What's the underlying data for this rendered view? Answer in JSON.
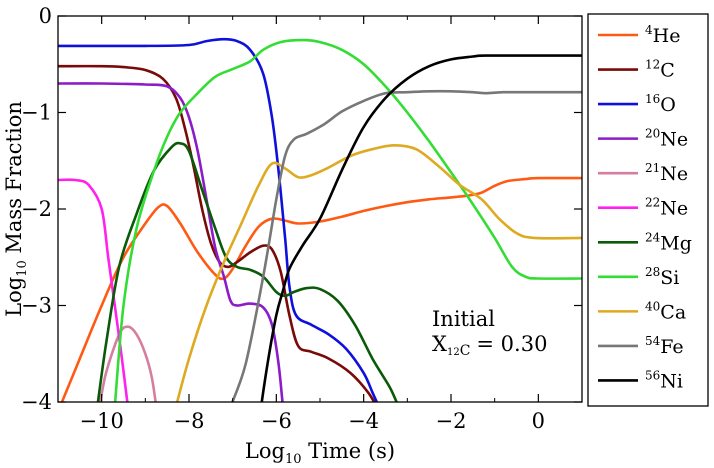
{
  "chart_data": {
    "type": "line",
    "xlabel": "Log10 Time (s)",
    "ylabel": "Log10 Mass Fraction",
    "xlim": [
      -11,
      1
    ],
    "ylim": [
      -4,
      0
    ],
    "xticks": [
      -10,
      -8,
      -6,
      -4,
      -2,
      0
    ],
    "yticks": [
      0,
      -1,
      -2,
      -3,
      -4
    ],
    "annotation": {
      "line1": "Initial",
      "line2_symbol": "X",
      "line2_sub_mass": "12",
      "line2_sub_elem": "C",
      "line2_value": "= 0.30"
    },
    "legend_position": "outside-right",
    "series": [
      {
        "mass": "4",
        "elem": "He",
        "color": "#ff5a14",
        "points": [
          [
            -11,
            -4.1
          ],
          [
            -10.5,
            -3.55
          ],
          [
            -10,
            -3.0
          ],
          [
            -9.5,
            -2.5
          ],
          [
            -9,
            -2.15
          ],
          [
            -8.7,
            -1.98
          ],
          [
            -8.5,
            -1.97
          ],
          [
            -8.2,
            -2.15
          ],
          [
            -7.8,
            -2.45
          ],
          [
            -7.4,
            -2.68
          ],
          [
            -7.2,
            -2.72
          ],
          [
            -7.0,
            -2.62
          ],
          [
            -6.7,
            -2.38
          ],
          [
            -6.4,
            -2.18
          ],
          [
            -6.1,
            -2.1
          ],
          [
            -5.8,
            -2.12
          ],
          [
            -5.5,
            -2.15
          ],
          [
            -5.0,
            -2.13
          ],
          [
            -4.5,
            -2.08
          ],
          [
            -4.0,
            -2.02
          ],
          [
            -3.5,
            -1.97
          ],
          [
            -3.0,
            -1.93
          ],
          [
            -2.5,
            -1.9
          ],
          [
            -2.0,
            -1.88
          ],
          [
            -1.6,
            -1.86
          ],
          [
            -1.3,
            -1.83
          ],
          [
            -1.0,
            -1.76
          ],
          [
            -0.7,
            -1.71
          ],
          [
            -0.3,
            -1.69
          ],
          [
            0,
            -1.68
          ],
          [
            1,
            -1.68
          ]
        ]
      },
      {
        "mass": "12",
        "elem": "C",
        "color": "#7a0a0a",
        "points": [
          [
            -11,
            -0.52
          ],
          [
            -10,
            -0.52
          ],
          [
            -9.5,
            -0.53
          ],
          [
            -9,
            -0.56
          ],
          [
            -8.6,
            -0.65
          ],
          [
            -8.3,
            -0.85
          ],
          [
            -8.1,
            -1.15
          ],
          [
            -7.9,
            -1.55
          ],
          [
            -7.7,
            -2.0
          ],
          [
            -7.5,
            -2.35
          ],
          [
            -7.3,
            -2.55
          ],
          [
            -7.1,
            -2.6
          ],
          [
            -6.9,
            -2.55
          ],
          [
            -6.6,
            -2.45
          ],
          [
            -6.3,
            -2.38
          ],
          [
            -6.1,
            -2.42
          ],
          [
            -5.9,
            -2.65
          ],
          [
            -5.7,
            -3.1
          ],
          [
            -5.5,
            -3.42
          ],
          [
            -5.2,
            -3.48
          ],
          [
            -4.8,
            -3.55
          ],
          [
            -4.3,
            -3.7
          ],
          [
            -3.9,
            -3.9
          ],
          [
            -3.7,
            -4.05
          ]
        ]
      },
      {
        "mass": "16",
        "elem": "O",
        "color": "#1010dd",
        "points": [
          [
            -11,
            -0.31
          ],
          [
            -9,
            -0.31
          ],
          [
            -8,
            -0.3
          ],
          [
            -7.6,
            -0.26
          ],
          [
            -7.2,
            -0.24
          ],
          [
            -6.9,
            -0.26
          ],
          [
            -6.6,
            -0.35
          ],
          [
            -6.3,
            -0.6
          ],
          [
            -6.1,
            -1.05
          ],
          [
            -5.95,
            -1.6
          ],
          [
            -5.8,
            -2.3
          ],
          [
            -5.7,
            -2.8
          ],
          [
            -5.55,
            -3.1
          ],
          [
            -5.2,
            -3.2
          ],
          [
            -4.8,
            -3.3
          ],
          [
            -4.4,
            -3.45
          ],
          [
            -4.0,
            -3.7
          ],
          [
            -3.8,
            -3.9
          ],
          [
            -3.65,
            -4.05
          ]
        ]
      },
      {
        "mass": "20",
        "elem": "Ne",
        "color": "#8c1cc8",
        "points": [
          [
            -11,
            -0.7
          ],
          [
            -10,
            -0.7
          ],
          [
            -9,
            -0.71
          ],
          [
            -8.5,
            -0.73
          ],
          [
            -8.2,
            -0.85
          ],
          [
            -8.0,
            -1.05
          ],
          [
            -7.8,
            -1.4
          ],
          [
            -7.6,
            -1.9
          ],
          [
            -7.4,
            -2.4
          ],
          [
            -7.2,
            -2.7
          ],
          [
            -7.05,
            -2.95
          ],
          [
            -6.9,
            -3.0
          ],
          [
            -6.6,
            -2.98
          ],
          [
            -6.3,
            -3.02
          ],
          [
            -6.1,
            -3.2
          ],
          [
            -5.95,
            -3.6
          ],
          [
            -5.85,
            -4.05
          ]
        ]
      },
      {
        "mass": "21",
        "elem": "Ne",
        "color": "#d67ea0",
        "points": [
          [
            -10.05,
            -4.05
          ],
          [
            -9.9,
            -3.7
          ],
          [
            -9.6,
            -3.3
          ],
          [
            -9.4,
            -3.22
          ],
          [
            -9.2,
            -3.3
          ],
          [
            -9.0,
            -3.5
          ],
          [
            -8.85,
            -3.75
          ],
          [
            -8.75,
            -4.05
          ]
        ]
      },
      {
        "mass": "22",
        "elem": "Ne",
        "color": "#ff22ee",
        "points": [
          [
            -11,
            -1.7
          ],
          [
            -10.6,
            -1.7
          ],
          [
            -10.3,
            -1.75
          ],
          [
            -10.0,
            -2.0
          ],
          [
            -9.85,
            -2.5
          ],
          [
            -9.7,
            -3.0
          ],
          [
            -9.55,
            -3.5
          ],
          [
            -9.4,
            -4.05
          ]
        ]
      },
      {
        "mass": "24",
        "elem": "Mg",
        "color": "#0a5a0a",
        "points": [
          [
            -10.1,
            -4.05
          ],
          [
            -9.9,
            -3.4
          ],
          [
            -9.6,
            -2.6
          ],
          [
            -9.2,
            -2.05
          ],
          [
            -8.8,
            -1.6
          ],
          [
            -8.4,
            -1.36
          ],
          [
            -8.2,
            -1.32
          ],
          [
            -8.0,
            -1.4
          ],
          [
            -7.7,
            -1.8
          ],
          [
            -7.4,
            -2.2
          ],
          [
            -7.15,
            -2.5
          ],
          [
            -6.9,
            -2.6
          ],
          [
            -6.6,
            -2.63
          ],
          [
            -6.3,
            -2.7
          ],
          [
            -6.0,
            -2.86
          ],
          [
            -5.8,
            -2.9
          ],
          [
            -5.6,
            -2.86
          ],
          [
            -5.3,
            -2.82
          ],
          [
            -5.0,
            -2.83
          ],
          [
            -4.6,
            -2.95
          ],
          [
            -4.2,
            -3.2
          ],
          [
            -3.8,
            -3.55
          ],
          [
            -3.4,
            -3.85
          ],
          [
            -3.2,
            -4.05
          ]
        ]
      },
      {
        "mass": "28",
        "elem": "Si",
        "color": "#33dd33",
        "points": [
          [
            -9.7,
            -4.05
          ],
          [
            -9.5,
            -3.0
          ],
          [
            -9.2,
            -2.2
          ],
          [
            -8.8,
            -1.6
          ],
          [
            -8.5,
            -1.25
          ],
          [
            -8.2,
            -1.0
          ],
          [
            -7.8,
            -0.8
          ],
          [
            -7.4,
            -0.63
          ],
          [
            -7.0,
            -0.55
          ],
          [
            -6.6,
            -0.47
          ],
          [
            -6.3,
            -0.35
          ],
          [
            -5.9,
            -0.27
          ],
          [
            -5.4,
            -0.25
          ],
          [
            -5.0,
            -0.27
          ],
          [
            -4.5,
            -0.35
          ],
          [
            -4.0,
            -0.5
          ],
          [
            -3.5,
            -0.73
          ],
          [
            -3.0,
            -1.0
          ],
          [
            -2.5,
            -1.3
          ],
          [
            -2.0,
            -1.62
          ],
          [
            -1.5,
            -1.95
          ],
          [
            -1.0,
            -2.3
          ],
          [
            -0.6,
            -2.6
          ],
          [
            -0.3,
            -2.7
          ],
          [
            0,
            -2.72
          ],
          [
            1,
            -2.72
          ]
        ]
      },
      {
        "mass": "40",
        "elem": "Ca",
        "color": "#ddaa22",
        "points": [
          [
            -8.3,
            -4.05
          ],
          [
            -8.0,
            -3.55
          ],
          [
            -7.6,
            -3.0
          ],
          [
            -7.2,
            -2.55
          ],
          [
            -6.8,
            -2.15
          ],
          [
            -6.4,
            -1.75
          ],
          [
            -6.1,
            -1.53
          ],
          [
            -5.8,
            -1.58
          ],
          [
            -5.5,
            -1.67
          ],
          [
            -5.2,
            -1.65
          ],
          [
            -4.8,
            -1.57
          ],
          [
            -4.3,
            -1.45
          ],
          [
            -3.8,
            -1.38
          ],
          [
            -3.3,
            -1.34
          ],
          [
            -2.8,
            -1.38
          ],
          [
            -2.3,
            -1.55
          ],
          [
            -1.8,
            -1.75
          ],
          [
            -1.3,
            -1.9
          ],
          [
            -0.9,
            -2.1
          ],
          [
            -0.5,
            -2.25
          ],
          [
            -0.1,
            -2.3
          ],
          [
            1,
            -2.3
          ]
        ]
      },
      {
        "mass": "54",
        "elem": "Fe",
        "color": "#777777",
        "points": [
          [
            -7.05,
            -4.05
          ],
          [
            -6.7,
            -3.6
          ],
          [
            -6.3,
            -2.7
          ],
          [
            -6.0,
            -1.9
          ],
          [
            -5.8,
            -1.45
          ],
          [
            -5.6,
            -1.28
          ],
          [
            -5.3,
            -1.22
          ],
          [
            -4.9,
            -1.12
          ],
          [
            -4.5,
            -0.99
          ],
          [
            -4.0,
            -0.88
          ],
          [
            -3.5,
            -0.8
          ],
          [
            -3.0,
            -0.79
          ],
          [
            -2.5,
            -0.78
          ],
          [
            -2.0,
            -0.78
          ],
          [
            -1.5,
            -0.79
          ],
          [
            -1.2,
            -0.8
          ],
          [
            -0.8,
            -0.79
          ],
          [
            0,
            -0.79
          ],
          [
            1,
            -0.79
          ]
        ]
      },
      {
        "mass": "56",
        "elem": "Ni",
        "color": "#000000",
        "points": [
          [
            -6.35,
            -4.05
          ],
          [
            -6.2,
            -3.6
          ],
          [
            -6.0,
            -3.1
          ],
          [
            -5.85,
            -2.85
          ],
          [
            -5.7,
            -2.62
          ],
          [
            -5.4,
            -2.38
          ],
          [
            -5.0,
            -2.1
          ],
          [
            -4.5,
            -1.6
          ],
          [
            -4.0,
            -1.15
          ],
          [
            -3.5,
            -0.85
          ],
          [
            -3.0,
            -0.65
          ],
          [
            -2.5,
            -0.52
          ],
          [
            -2.0,
            -0.45
          ],
          [
            -1.5,
            -0.42
          ],
          [
            -1.2,
            -0.41
          ],
          [
            0,
            -0.41
          ],
          [
            1,
            -0.41
          ]
        ]
      }
    ]
  }
}
